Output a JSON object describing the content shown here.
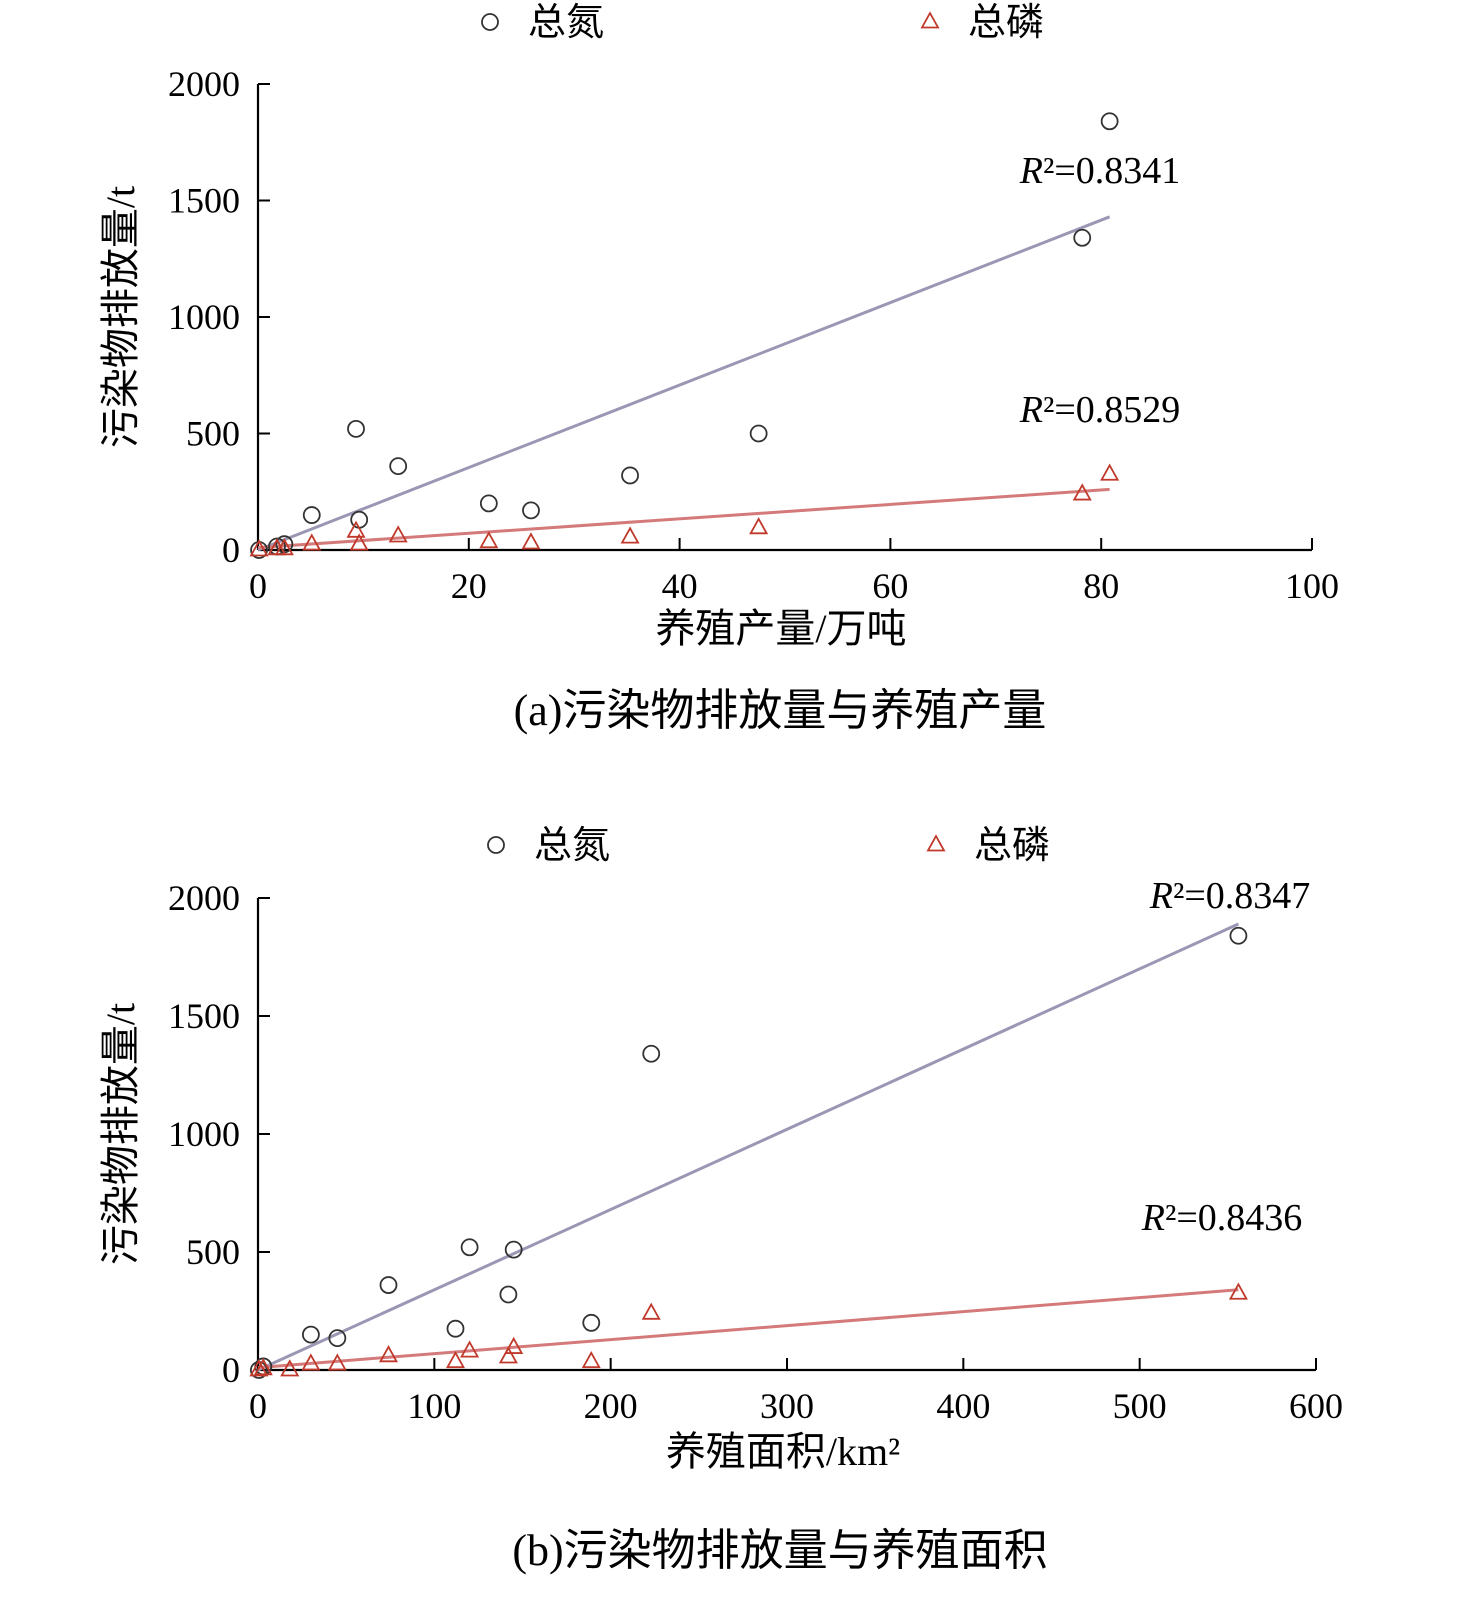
{
  "colors": {
    "tn_marker": "#333333",
    "tp_marker": "#c0392b",
    "tn_trend": "#9a97b5",
    "tp_trend": "#d47a7a",
    "axis": "#000000"
  },
  "chart_data": [
    {
      "type": "scatter",
      "caption": "(a)污染物排放量与养殖产量",
      "xlabel": "养殖产量/万吨",
      "ylabel": "污染物排放量/t",
      "xlim": [
        0,
        100
      ],
      "ylim": [
        0,
        2000
      ],
      "xticks": [
        0,
        20,
        40,
        60,
        80,
        100
      ],
      "yticks": [
        0,
        500,
        1000,
        1500,
        2000
      ],
      "grid": false,
      "legend_position": "top",
      "series": [
        {
          "name": "总氮",
          "marker": "circle",
          "points": [
            [
              0.1,
              0
            ],
            [
              1.8,
              15
            ],
            [
              2.5,
              25
            ],
            [
              5.1,
              150
            ],
            [
              9.3,
              520
            ],
            [
              9.6,
              130
            ],
            [
              13.3,
              360
            ],
            [
              21.9,
              200
            ],
            [
              25.9,
              170
            ],
            [
              35.3,
              320
            ],
            [
              47.5,
              500
            ],
            [
              78.2,
              1340
            ],
            [
              80.8,
              1840
            ]
          ],
          "trendline": {
            "from": [
              0,
              0
            ],
            "to": [
              80.8,
              1430
            ]
          },
          "r2_label": "R²=0.8341"
        },
        {
          "name": "总磷",
          "marker": "triangle",
          "points": [
            [
              0.1,
              0
            ],
            [
              1.8,
              5
            ],
            [
              2.5,
              5
            ],
            [
              5.1,
              25
            ],
            [
              9.3,
              80
            ],
            [
              9.6,
              25
            ],
            [
              13.3,
              60
            ],
            [
              21.9,
              35
            ],
            [
              25.9,
              30
            ],
            [
              35.3,
              55
            ],
            [
              47.5,
              95
            ],
            [
              78.2,
              240
            ],
            [
              80.8,
              325
            ]
          ],
          "trendline": {
            "from": [
              0,
              10
            ],
            "to": [
              80.8,
              260
            ]
          },
          "r2_label": "R²=0.8529"
        }
      ]
    },
    {
      "type": "scatter",
      "caption": "(b)污染物排放量与养殖面积",
      "xlabel": "养殖面积/km²",
      "ylabel": "污染物排放量/t",
      "xlim": [
        0,
        600
      ],
      "ylim": [
        0,
        2000
      ],
      "xticks": [
        0,
        100,
        200,
        300,
        400,
        500,
        600
      ],
      "yticks": [
        0,
        500,
        1000,
        1500,
        2000
      ],
      "grid": false,
      "legend_position": "top",
      "series": [
        {
          "name": "总氮",
          "marker": "circle",
          "points": [
            [
              0.5,
              0
            ],
            [
              3,
              15
            ],
            [
              30,
              150
            ],
            [
              45,
              135
            ],
            [
              74,
              360
            ],
            [
              112,
              175
            ],
            [
              120,
              520
            ],
            [
              142,
              320
            ],
            [
              145,
              510
            ],
            [
              189,
              200
            ],
            [
              223,
              1340
            ],
            [
              556,
              1840
            ]
          ],
          "trendline": {
            "from": [
              0,
              0
            ],
            "to": [
              556,
              1890
            ]
          },
          "r2_label": "R²=0.8347"
        },
        {
          "name": "总磷",
          "marker": "triangle",
          "points": [
            [
              0.5,
              0
            ],
            [
              3,
              5
            ],
            [
              18,
              0
            ],
            [
              30,
              25
            ],
            [
              45,
              25
            ],
            [
              74,
              60
            ],
            [
              112,
              35
            ],
            [
              120,
              80
            ],
            [
              142,
              55
            ],
            [
              145,
              95
            ],
            [
              189,
              35
            ],
            [
              223,
              240
            ],
            [
              556,
              325
            ]
          ],
          "trendline": {
            "from": [
              0,
              10
            ],
            "to": [
              556,
              340
            ]
          },
          "r2_label": "R²=0.8436"
        }
      ]
    }
  ]
}
